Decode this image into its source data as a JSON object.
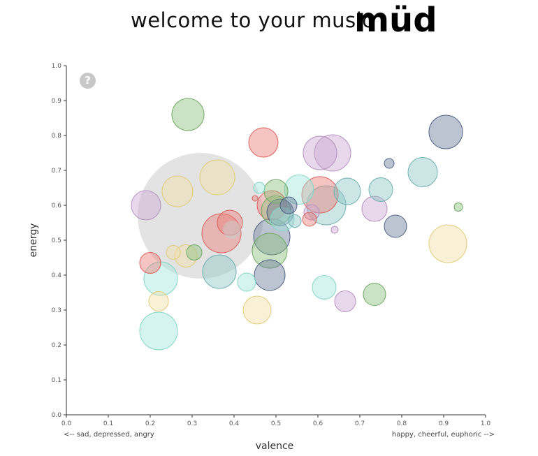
{
  "header": {
    "welcome_text": "welcome to your music",
    "brand": "müd"
  },
  "help_button": {
    "label": "?"
  },
  "colors": {
    "grey": "#cccccc",
    "green": "#8bbf7e",
    "purple": "#c9a9d2",
    "red": "#ec7d78",
    "yellow": "#efe0a8",
    "cyan": "#a5e7dc",
    "teal": "#8ec6c6",
    "navy": "#6a7c9c"
  },
  "chart_data": {
    "type": "scatter",
    "title": "",
    "xlabel": "valence",
    "ylabel": "energy",
    "xlim": [
      0,
      1
    ],
    "ylim": [
      0,
      1
    ],
    "x_ticks": [
      "0.0",
      "0.1",
      "0.2",
      "0.3",
      "0.4",
      "0.5",
      "0.6",
      "0.7",
      "0.8",
      "0.9",
      "1.0"
    ],
    "y_ticks": [
      "0.0",
      "0.1",
      "0.2",
      "0.3",
      "0.4",
      "0.5",
      "0.6",
      "0.7",
      "0.8",
      "0.9",
      "1.0"
    ],
    "x_left_note": "<-- sad, depressed, angry",
    "x_right_note": "happy, cheerful, euphoric -->",
    "grid": false,
    "points": [
      {
        "x": 0.32,
        "y": 0.57,
        "size": 90,
        "color": "grey"
      },
      {
        "x": 0.29,
        "y": 0.86,
        "size": 23,
        "color": "green"
      },
      {
        "x": 0.19,
        "y": 0.6,
        "size": 21,
        "color": "purple"
      },
      {
        "x": 0.265,
        "y": 0.64,
        "size": 22,
        "color": "yellow"
      },
      {
        "x": 0.36,
        "y": 0.68,
        "size": 25,
        "color": "yellow"
      },
      {
        "x": 0.47,
        "y": 0.78,
        "size": 21,
        "color": "red"
      },
      {
        "x": 0.37,
        "y": 0.52,
        "size": 28,
        "color": "red"
      },
      {
        "x": 0.39,
        "y": 0.55,
        "size": 18,
        "color": "red"
      },
      {
        "x": 0.395,
        "y": 0.53,
        "size": 13,
        "color": "grey"
      },
      {
        "x": 0.365,
        "y": 0.41,
        "size": 24,
        "color": "teal"
      },
      {
        "x": 0.2,
        "y": 0.435,
        "size": 15,
        "color": "red"
      },
      {
        "x": 0.225,
        "y": 0.39,
        "size": 24,
        "color": "cyan"
      },
      {
        "x": 0.255,
        "y": 0.465,
        "size": 10,
        "color": "yellow"
      },
      {
        "x": 0.285,
        "y": 0.455,
        "size": 16,
        "color": "yellow"
      },
      {
        "x": 0.305,
        "y": 0.465,
        "size": 11,
        "color": "green"
      },
      {
        "x": 0.22,
        "y": 0.325,
        "size": 14,
        "color": "yellow"
      },
      {
        "x": 0.22,
        "y": 0.24,
        "size": 27,
        "color": "cyan"
      },
      {
        "x": 0.43,
        "y": 0.38,
        "size": 13,
        "color": "cyan"
      },
      {
        "x": 0.455,
        "y": 0.3,
        "size": 20,
        "color": "yellow"
      },
      {
        "x": 0.485,
        "y": 0.4,
        "size": 22,
        "color": "navy"
      },
      {
        "x": 0.485,
        "y": 0.47,
        "size": 25,
        "color": "green"
      },
      {
        "x": 0.49,
        "y": 0.51,
        "size": 26,
        "color": "navy"
      },
      {
        "x": 0.46,
        "y": 0.65,
        "size": 8,
        "color": "cyan"
      },
      {
        "x": 0.45,
        "y": 0.62,
        "size": 4,
        "color": "red"
      },
      {
        "x": 0.5,
        "y": 0.64,
        "size": 17,
        "color": "green"
      },
      {
        "x": 0.49,
        "y": 0.6,
        "size": 21,
        "color": "red"
      },
      {
        "x": 0.5,
        "y": 0.585,
        "size": 21,
        "color": "green"
      },
      {
        "x": 0.51,
        "y": 0.58,
        "size": 19,
        "color": "navy"
      },
      {
        "x": 0.53,
        "y": 0.6,
        "size": 12,
        "color": "navy"
      },
      {
        "x": 0.515,
        "y": 0.56,
        "size": 17,
        "color": "cyan"
      },
      {
        "x": 0.545,
        "y": 0.555,
        "size": 9,
        "color": "teal"
      },
      {
        "x": 0.555,
        "y": 0.645,
        "size": 21,
        "color": "cyan"
      },
      {
        "x": 0.58,
        "y": 0.56,
        "size": 10,
        "color": "red"
      },
      {
        "x": 0.585,
        "y": 0.58,
        "size": 11,
        "color": "purple"
      },
      {
        "x": 0.605,
        "y": 0.63,
        "size": 26,
        "color": "red"
      },
      {
        "x": 0.62,
        "y": 0.6,
        "size": 28,
        "color": "teal"
      },
      {
        "x": 0.605,
        "y": 0.75,
        "size": 24,
        "color": "purple"
      },
      {
        "x": 0.635,
        "y": 0.75,
        "size": 26,
        "color": "purple"
      },
      {
        "x": 0.64,
        "y": 0.53,
        "size": 5,
        "color": "purple"
      },
      {
        "x": 0.67,
        "y": 0.64,
        "size": 19,
        "color": "teal"
      },
      {
        "x": 0.615,
        "y": 0.365,
        "size": 17,
        "color": "cyan"
      },
      {
        "x": 0.665,
        "y": 0.325,
        "size": 15,
        "color": "purple"
      },
      {
        "x": 0.735,
        "y": 0.345,
        "size": 16,
        "color": "green"
      },
      {
        "x": 0.735,
        "y": 0.59,
        "size": 18,
        "color": "purple"
      },
      {
        "x": 0.75,
        "y": 0.645,
        "size": 17,
        "color": "teal"
      },
      {
        "x": 0.77,
        "y": 0.72,
        "size": 7,
        "color": "navy"
      },
      {
        "x": 0.785,
        "y": 0.54,
        "size": 16,
        "color": "navy"
      },
      {
        "x": 0.85,
        "y": 0.695,
        "size": 21,
        "color": "teal"
      },
      {
        "x": 0.905,
        "y": 0.81,
        "size": 24,
        "color": "navy"
      },
      {
        "x": 0.91,
        "y": 0.49,
        "size": 27,
        "color": "yellow"
      },
      {
        "x": 0.935,
        "y": 0.595,
        "size": 6,
        "color": "green"
      }
    ]
  }
}
